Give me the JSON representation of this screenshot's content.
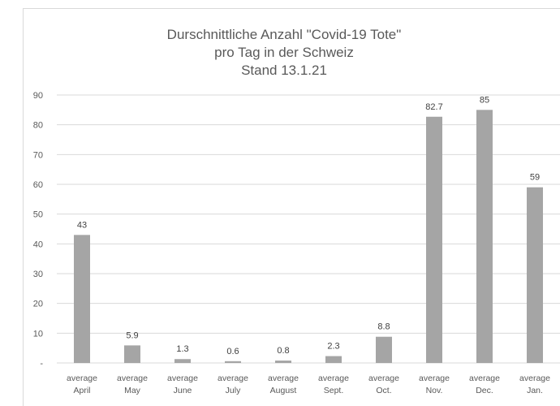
{
  "chart_data": {
    "type": "bar",
    "title": [
      "Durschnittliche Anzahl \"Covid-19 Tote\"",
      "pro Tag in der Schweiz",
      "Stand 13.1.21"
    ],
    "categories": [
      [
        "average",
        "April"
      ],
      [
        "average",
        "May"
      ],
      [
        "average",
        "June"
      ],
      [
        "average",
        "July"
      ],
      [
        "average",
        "August"
      ],
      [
        "average",
        "Sept."
      ],
      [
        "average",
        "Oct."
      ],
      [
        "average",
        "Nov."
      ],
      [
        "average",
        "Dec."
      ],
      [
        "average",
        "Jan."
      ]
    ],
    "values": [
      43,
      5.9,
      1.3,
      0.6,
      0.8,
      2.3,
      8.8,
      82.7,
      85,
      59
    ],
    "data_labels": [
      "43",
      "5.9",
      "1.3",
      "0.6",
      "0.8",
      "2.3",
      "8.8",
      "82.7",
      "85",
      "59"
    ],
    "yticks": [
      "-",
      "10",
      "20",
      "30",
      "40",
      "50",
      "60",
      "70",
      "80",
      "90"
    ],
    "ylim": [
      0,
      90
    ],
    "grid": true,
    "legend": "none",
    "bar_color": "#a5a5a5",
    "grid_color": "#d9d9d9",
    "text_color": "#595959"
  }
}
